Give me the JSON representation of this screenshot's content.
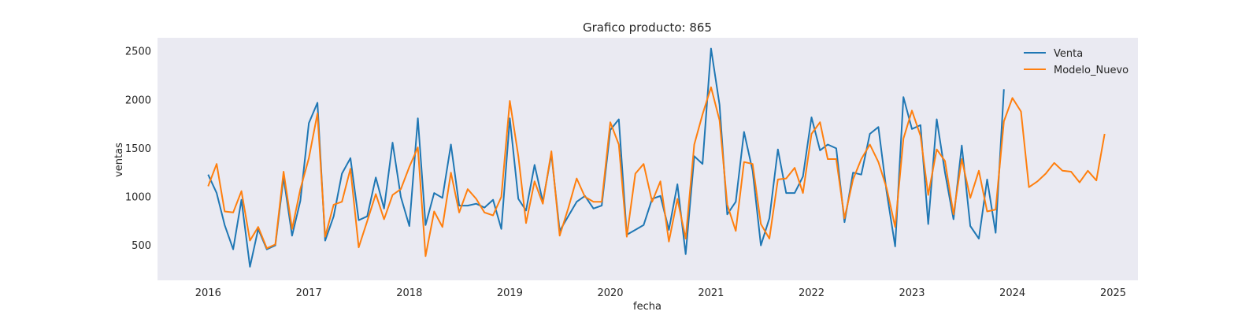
{
  "chart_data": {
    "type": "line",
    "title": "Grafico producto: 865",
    "xlabel": "fecha",
    "ylabel": "ventas",
    "xlim": [
      "2015-07-01",
      "2025-04-01"
    ],
    "ylim": [
      140,
      2640
    ],
    "x_ticks": [
      "2016",
      "2017",
      "2018",
      "2019",
      "2020",
      "2021",
      "2022",
      "2023",
      "2024",
      "2025"
    ],
    "y_ticks": [
      500,
      1000,
      1500,
      2000,
      2500
    ],
    "grid": false,
    "legend_position": "top-right",
    "series": [
      {
        "name": "Venta",
        "color": "#1f77b4",
        "start": "2016-01",
        "values": [
          1230,
          1040,
          710,
          460,
          970,
          280,
          670,
          460,
          500,
          1200,
          600,
          960,
          1760,
          1970,
          550,
          800,
          1240,
          1400,
          760,
          800,
          1200,
          880,
          1560,
          1000,
          700,
          1810,
          710,
          1040,
          990,
          1540,
          910,
          910,
          930,
          890,
          970,
          670,
          1810,
          980,
          860,
          1330,
          950,
          1440,
          650,
          800,
          950,
          1010,
          880,
          910,
          1690,
          1800,
          610,
          660,
          710,
          980,
          1010,
          660,
          1130,
          410,
          1420,
          1340,
          2530,
          1950,
          820,
          950,
          1670,
          1270,
          500,
          780,
          1490,
          1040,
          1040,
          1210,
          1820,
          1480,
          1540,
          1500,
          740,
          1250,
          1230,
          1650,
          1720,
          1050,
          490,
          2030,
          1700,
          1740,
          720,
          1800,
          1250,
          770,
          1530,
          700,
          570,
          1180,
          630,
          2110
        ]
      },
      {
        "name": "Modelo_Nuevo",
        "color": "#ff7f0e",
        "start": "2016-01",
        "values": [
          1110,
          1340,
          850,
          840,
          1060,
          550,
          690,
          470,
          510,
          1260,
          670,
          1080,
          1400,
          1860,
          590,
          920,
          950,
          1290,
          480,
          750,
          1030,
          770,
          1020,
          1080,
          1310,
          1510,
          390,
          850,
          690,
          1250,
          840,
          1080,
          980,
          840,
          810,
          1000,
          1990,
          1420,
          730,
          1160,
          930,
          1470,
          600,
          880,
          1190,
          1000,
          950,
          950,
          1770,
          1540,
          590,
          1240,
          1340,
          950,
          1160,
          540,
          980,
          570,
          1540,
          1850,
          2130,
          1790,
          920,
          650,
          1360,
          1340,
          720,
          570,
          1180,
          1190,
          1300,
          1040,
          1650,
          1770,
          1390,
          1390,
          780,
          1180,
          1390,
          1540,
          1360,
          1090,
          690,
          1600,
          1890,
          1630,
          1020,
          1490,
          1370,
          820,
          1390,
          990,
          1270,
          850,
          870,
          1780,
          2020,
          1880,
          1100,
          1160,
          1240,
          1350,
          1270,
          1260,
          1150,
          1270,
          1170,
          1650
        ]
      }
    ]
  }
}
